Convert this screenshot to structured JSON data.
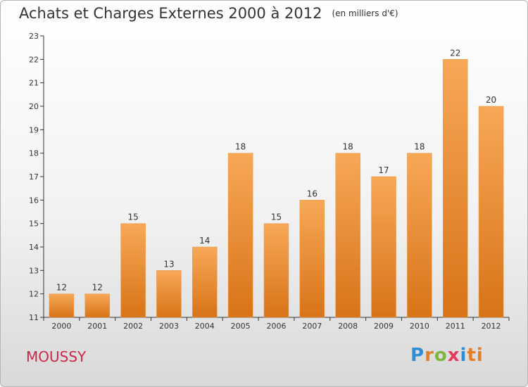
{
  "header": {
    "title": "Achats et Charges Externes 2000 à 2012",
    "unit": "(en milliers d'€)"
  },
  "commune": "MOUSSY",
  "logo": {
    "p1": "P",
    "p2": "r",
    "p3": "o",
    "p4": "x",
    "p5": "i",
    "p6": "ti"
  },
  "colors": {
    "bar_top": "#f7a857",
    "bar_bottom": "#d87318",
    "axis": "#333333"
  },
  "chart_data": {
    "type": "bar",
    "title": "Achats et Charges Externes 2000 à 2012",
    "subtitle": "(en milliers d'€)",
    "categories": [
      "2000",
      "2001",
      "2002",
      "2003",
      "2004",
      "2005",
      "2006",
      "2007",
      "2008",
      "2009",
      "2010",
      "2011",
      "2012"
    ],
    "values": [
      12,
      12,
      15,
      13,
      14,
      18,
      15,
      16,
      18,
      17,
      18,
      22,
      20
    ],
    "ylim": [
      11,
      23
    ],
    "yticks": [
      11,
      12,
      13,
      14,
      15,
      16,
      17,
      18,
      19,
      20,
      21,
      22,
      23
    ],
    "grid": false,
    "legend": "none"
  }
}
